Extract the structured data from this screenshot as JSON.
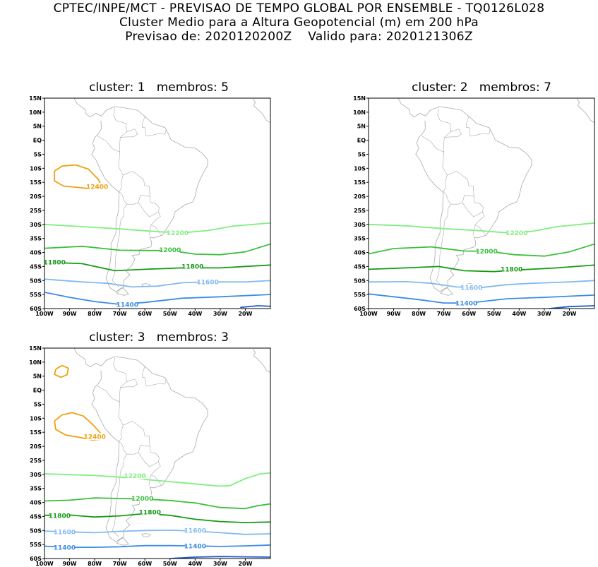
{
  "header": {
    "line1": "CPTEC/INPE/MCT - PREVISAO DE TEMPO GLOBAL POR ENSEMBLE - TQ0126L028",
    "line2": "Cluster Medio para a Altura Geopotencial (m) em 200 hPa",
    "line3": "Previsao de: 2020120200Z    Valido para: 2020121306Z"
  },
  "axes": {
    "lat_ticks": [
      "15N",
      "10N",
      "5N",
      "EQ",
      "5S",
      "10S",
      "15S",
      "20S",
      "25S",
      "30S",
      "35S",
      "40S",
      "45S",
      "50S",
      "55S",
      "60S"
    ],
    "lon_ticks": [
      "100W",
      "90W",
      "80W",
      "70W",
      "60W",
      "50W",
      "40W",
      "30W",
      "20W"
    ],
    "lat_range": [
      -60,
      15
    ],
    "lon_range": [
      -100,
      -10
    ]
  },
  "colors": {
    "c12400": "#f0a010",
    "c12200": "#80ee80",
    "c12000": "#3cc03c",
    "c11800": "#149c14",
    "c11600": "#82baf0",
    "c11400": "#3c8ce6",
    "c11200": "#1e5ac8",
    "coast": "#aaaaaa"
  },
  "panels": [
    {
      "title": "cluster: 1   membros: 5",
      "labels": [
        {
          "text": "12400",
          "lon": -79,
          "lat": -16.5,
          "color": "c12400"
        },
        {
          "text": "12200",
          "lon": -47,
          "lat": -33,
          "color": "c12200"
        },
        {
          "text": "12000",
          "lon": -50,
          "lat": -39,
          "color": "c12000"
        },
        {
          "text": "11800",
          "lon": -96,
          "lat": -43.5,
          "color": "c11800"
        },
        {
          "text": "11800",
          "lon": -41,
          "lat": -45,
          "color": "c11800"
        },
        {
          "text": "11600",
          "lon": -35,
          "lat": -50.5,
          "color": "c11600"
        },
        {
          "text": "11400",
          "lon": -67,
          "lat": -58.5,
          "color": "c11400"
        }
      ],
      "contours": [
        {
          "color": "c12400",
          "pts": [
            [
              -96,
              -11
            ],
            [
              -93,
              -9.2
            ],
            [
              -87.5,
              -8.8
            ],
            [
              -82.5,
              -10.3
            ],
            [
              -78.5,
              -14
            ],
            [
              -77,
              -17
            ],
            [
              -79,
              -17.5
            ],
            [
              -85,
              -17
            ],
            [
              -92.5,
              -16.3
            ],
            [
              -96,
              -14.5
            ],
            [
              -96,
              -11
            ]
          ]
        },
        {
          "color": "c12200",
          "pts": [
            [
              -100,
              -30
            ],
            [
              -85,
              -30.8
            ],
            [
              -70,
              -31.6
            ],
            [
              -55,
              -32.6
            ],
            [
              -45,
              -33
            ],
            [
              -35,
              -32.2
            ],
            [
              -25,
              -30.6
            ],
            [
              -10,
              -29.5
            ]
          ]
        },
        {
          "color": "c12000",
          "pts": [
            [
              -100,
              -38.5
            ],
            [
              -85,
              -37.8
            ],
            [
              -70,
              -39.2
            ],
            [
              -58,
              -39.3
            ],
            [
              -50,
              -39.3
            ],
            [
              -40,
              -40.6
            ],
            [
              -30,
              -40.8
            ],
            [
              -20,
              -39.8
            ],
            [
              -10,
              -37
            ]
          ]
        },
        {
          "color": "c11800",
          "pts": [
            [
              -100,
              -43.5
            ],
            [
              -85,
              -44
            ],
            [
              -72,
              -46.5
            ],
            [
              -60,
              -46
            ],
            [
              -45,
              -45.5
            ],
            [
              -30,
              -45.5
            ],
            [
              -10,
              -44.5
            ]
          ]
        },
        {
          "color": "c11600",
          "pts": [
            [
              -100,
              -49.5
            ],
            [
              -85,
              -50.5
            ],
            [
              -75,
              -51
            ],
            [
              -65,
              -52.3
            ],
            [
              -55,
              -52
            ],
            [
              -45,
              -50.8
            ],
            [
              -35,
              -50.5
            ],
            [
              -20,
              -50.5
            ],
            [
              -10,
              -50
            ]
          ]
        },
        {
          "color": "c11400",
          "pts": [
            [
              -100,
              -54.2
            ],
            [
              -90,
              -56
            ],
            [
              -80,
              -57.5
            ],
            [
              -70,
              -58.5
            ],
            [
              -60,
              -57.8
            ],
            [
              -45,
              -56.3
            ],
            [
              -30,
              -55.8
            ],
            [
              -10,
              -55
            ]
          ]
        },
        {
          "color": "c11200",
          "pts": [
            [
              -22,
              -59.6
            ],
            [
              -15,
              -59
            ],
            [
              -10,
              -59.2
            ]
          ]
        }
      ]
    },
    {
      "title": "cluster: 2   membros: 7",
      "labels": [
        {
          "text": "12200",
          "lon": -41,
          "lat": -33,
          "color": "c12200"
        },
        {
          "text": "12000",
          "lon": -53,
          "lat": -39.5,
          "color": "c12000"
        },
        {
          "text": "11800",
          "lon": -43,
          "lat": -46,
          "color": "c11800"
        },
        {
          "text": "11600",
          "lon": -59,
          "lat": -52.5,
          "color": "c11600"
        },
        {
          "text": "11400",
          "lon": -61,
          "lat": -58,
          "color": "c11400"
        }
      ],
      "contours": [
        {
          "color": "c12200",
          "pts": [
            [
              -100,
              -30
            ],
            [
              -85,
              -30.5
            ],
            [
              -70,
              -31.5
            ],
            [
              -55,
              -32.3
            ],
            [
              -45,
              -33
            ],
            [
              -35,
              -32.5
            ],
            [
              -25,
              -30.8
            ],
            [
              -10,
              -29.5
            ]
          ]
        },
        {
          "color": "c12000",
          "pts": [
            [
              -100,
              -40.5
            ],
            [
              -90,
              -38.6
            ],
            [
              -75,
              -38
            ],
            [
              -62,
              -39.5
            ],
            [
              -52,
              -39.6
            ],
            [
              -42,
              -40.8
            ],
            [
              -30,
              -41.3
            ],
            [
              -20,
              -39.8
            ],
            [
              -10,
              -37
            ]
          ]
        },
        {
          "color": "c11800",
          "pts": [
            [
              -100,
              -46
            ],
            [
              -85,
              -45.5
            ],
            [
              -72,
              -45
            ],
            [
              -62,
              -46.5
            ],
            [
              -50,
              -46.8
            ],
            [
              -40,
              -46.2
            ],
            [
              -25,
              -45.5
            ],
            [
              -10,
              -44.5
            ]
          ]
        },
        {
          "color": "c11600",
          "pts": [
            [
              -100,
              -50.5
            ],
            [
              -85,
              -50.4
            ],
            [
              -75,
              -51
            ],
            [
              -65,
              -52.3
            ],
            [
              -55,
              -52.5
            ],
            [
              -45,
              -51.5
            ],
            [
              -35,
              -51
            ],
            [
              -20,
              -50.5
            ],
            [
              -10,
              -50
            ]
          ]
        },
        {
          "color": "c11400",
          "pts": [
            [
              -100,
              -54.8
            ],
            [
              -90,
              -55.8
            ],
            [
              -80,
              -56.8
            ],
            [
              -70,
              -58
            ],
            [
              -60,
              -58
            ],
            [
              -45,
              -56.5
            ],
            [
              -30,
              -56
            ],
            [
              -10,
              -55.2
            ]
          ]
        },
        {
          "color": "c11200",
          "pts": [
            [
              -28,
              -60
            ],
            [
              -20,
              -59.3
            ],
            [
              -10,
              -59
            ]
          ]
        }
      ]
    },
    {
      "title": "cluster: 3   membros: 3",
      "labels": [
        {
          "text": "12400",
          "lon": -80,
          "lat": -16.5,
          "color": "c12400"
        },
        {
          "text": "12200",
          "lon": -64,
          "lat": -30.5,
          "color": "c12200"
        },
        {
          "text": "12000",
          "lon": -61,
          "lat": -38.5,
          "color": "c12000"
        },
        {
          "text": "11800",
          "lon": -94,
          "lat": -44.7,
          "color": "c11800"
        },
        {
          "text": "11800",
          "lon": -58,
          "lat": -43.5,
          "color": "c11800"
        },
        {
          "text": "11600",
          "lon": -92,
          "lat": -50.5,
          "color": "c11600"
        },
        {
          "text": "11600",
          "lon": -40,
          "lat": -50,
          "color": "c11600"
        },
        {
          "text": "11400",
          "lon": -92,
          "lat": -56,
          "color": "c11400"
        },
        {
          "text": "11400",
          "lon": -40,
          "lat": -55.5,
          "color": "c11400"
        }
      ],
      "contours": [
        {
          "color": "c12400",
          "pts": [
            [
              -95.5,
              7.5
            ],
            [
              -93,
              8.8
            ],
            [
              -90.5,
              7.8
            ],
            [
              -91,
              5.5
            ],
            [
              -93.5,
              4.6
            ],
            [
              -96,
              5.6
            ],
            [
              -95.5,
              7.5
            ]
          ]
        },
        {
          "color": "c12400",
          "pts": [
            [
              -96,
              -11
            ],
            [
              -93,
              -8.8
            ],
            [
              -89,
              -8
            ],
            [
              -84.5,
              -9.2
            ],
            [
              -80.5,
              -12.5
            ],
            [
              -77,
              -16
            ],
            [
              -77.3,
              -17.5
            ],
            [
              -81,
              -17.8
            ],
            [
              -86,
              -16.8
            ],
            [
              -91.5,
              -16
            ],
            [
              -95.5,
              -14
            ],
            [
              -96,
              -11
            ]
          ]
        },
        {
          "color": "c12200",
          "pts": [
            [
              -100,
              -29.8
            ],
            [
              -90,
              -30.1
            ],
            [
              -80,
              -30.4
            ],
            [
              -70,
              -31
            ],
            [
              -60,
              -31.8
            ],
            [
              -50,
              -32.6
            ],
            [
              -40,
              -33.4
            ],
            [
              -30,
              -34.2
            ],
            [
              -26,
              -34
            ],
            [
              -20,
              -31.5
            ],
            [
              -14,
              -29.8
            ],
            [
              -10,
              -29.5
            ]
          ]
        },
        {
          "color": "c12000",
          "pts": [
            [
              -100,
              -39.5
            ],
            [
              -90,
              -39.2
            ],
            [
              -80,
              -38.4
            ],
            [
              -70,
              -38.6
            ],
            [
              -60,
              -38.8
            ],
            [
              -50,
              -39.3
            ],
            [
              -40,
              -40.2
            ],
            [
              -30,
              -41.8
            ],
            [
              -20,
              -42.2
            ],
            [
              -15,
              -41.2
            ],
            [
              -10,
              -40.5
            ]
          ]
        },
        {
          "color": "c11800",
          "pts": [
            [
              -100,
              -44.6
            ],
            [
              -90,
              -44.5
            ],
            [
              -80,
              -45.2
            ],
            [
              -70,
              -44.8
            ],
            [
              -60,
              -44
            ],
            [
              -50,
              -44.6
            ],
            [
              -40,
              -46
            ],
            [
              -30,
              -46.8
            ],
            [
              -20,
              -47.2
            ],
            [
              -10,
              -47
            ]
          ]
        },
        {
          "color": "c11600",
          "pts": [
            [
              -100,
              -50.2
            ],
            [
              -90,
              -50.5
            ],
            [
              -80,
              -50.8
            ],
            [
              -70,
              -50.3
            ],
            [
              -60,
              -50
            ],
            [
              -50,
              -49.9
            ],
            [
              -40,
              -50.2
            ],
            [
              -30,
              -50.8
            ],
            [
              -20,
              -51.4
            ],
            [
              -10,
              -51.2
            ]
          ]
        },
        {
          "color": "c11400",
          "pts": [
            [
              -100,
              -55.6
            ],
            [
              -90,
              -56
            ],
            [
              -80,
              -56
            ],
            [
              -70,
              -55.8
            ],
            [
              -60,
              -55.4
            ],
            [
              -50,
              -55.4
            ],
            [
              -40,
              -55.5
            ],
            [
              -30,
              -55.7
            ],
            [
              -20,
              -55.5
            ],
            [
              -10,
              -55.2
            ]
          ]
        },
        {
          "color": "c11200",
          "pts": [
            [
              -50,
              -60
            ],
            [
              -40,
              -59.5
            ],
            [
              -30,
              -59.3
            ],
            [
              -20,
              -59.4
            ],
            [
              -10,
              -59.5
            ]
          ]
        }
      ]
    }
  ]
}
